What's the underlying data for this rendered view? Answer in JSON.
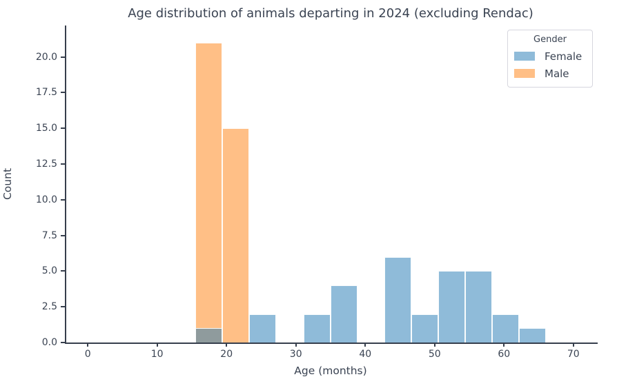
{
  "chart_data": {
    "type": "bar",
    "subtype": "histogram-layered",
    "title": "Age distribution of animals departing in 2024 (excluding Rendac)",
    "xlabel": "Age (months)",
    "ylabel": "Count",
    "bin_edges": [
      15.52,
      19.41,
      23.3,
      27.19,
      31.08,
      34.96,
      38.85,
      42.74,
      46.63,
      50.52,
      54.41,
      58.29,
      62.18,
      66.07
    ],
    "series": [
      {
        "name": "Male",
        "color": "#ff7f0e",
        "fill": "rgba(255,127,14,0.5)",
        "zorder": 1,
        "values": [
          21,
          15,
          0,
          0,
          0,
          0,
          0,
          0,
          0,
          0,
          0,
          0,
          0
        ]
      },
      {
        "name": "Female",
        "color": "#1f77b4",
        "fill": "rgba(31,119,180,0.5)",
        "zorder": 2,
        "values": [
          1,
          0,
          2,
          0,
          2,
          4,
          0,
          6,
          2,
          5,
          5,
          2,
          1
        ]
      }
    ],
    "xlim": [
      -3.1,
      73.5
    ],
    "ylim": [
      0,
      22.2
    ],
    "xticks": {
      "values": [
        0,
        10,
        20,
        30,
        40,
        50,
        60,
        70
      ],
      "labels": [
        "0",
        "10",
        "20",
        "30",
        "40",
        "50",
        "60",
        "70"
      ]
    },
    "yticks": {
      "values": [
        0,
        2.5,
        5,
        7.5,
        10,
        12.5,
        15,
        17.5,
        20
      ],
      "labels": [
        "0.0",
        "2.5",
        "5.0",
        "7.5",
        "10.0",
        "12.5",
        "15.0",
        "17.5",
        "20.0"
      ]
    },
    "grid": false,
    "legend": {
      "title": "Gender",
      "position": "upper right",
      "entries": [
        {
          "label": "Female",
          "swatch": "rgba(31,119,180,0.5)"
        },
        {
          "label": "Male",
          "swatch": "rgba(255,127,14,0.5)"
        }
      ]
    }
  },
  "colors": {
    "text": "#3a4352",
    "spine": "#363e4c",
    "background": "#ffffff",
    "overlap_observed": "#8f9b9d",
    "female_bar_observed": "#8fbbda",
    "male_bar_observed": "#ffbf86",
    "legend_border": "#d6d6de"
  }
}
